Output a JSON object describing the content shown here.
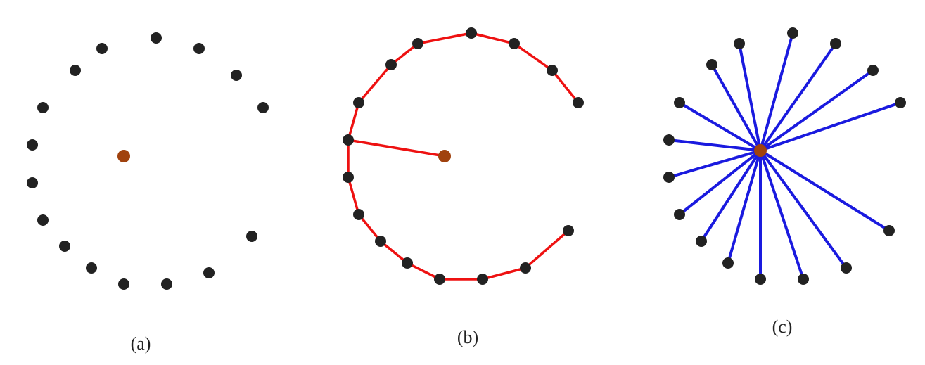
{
  "panels": [
    {
      "id": "a",
      "caption": "(a)"
    },
    {
      "id": "b",
      "caption": "(b)"
    },
    {
      "id": "c",
      "caption": "(c)"
    }
  ],
  "colors": {
    "node": "#222222",
    "center": "#a0420e",
    "path_edge": "#ee1111",
    "star_edge": "#1a1adf"
  }
}
